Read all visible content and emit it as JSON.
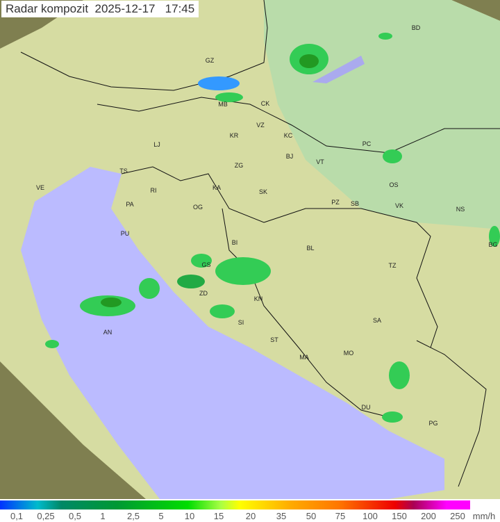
{
  "header": {
    "title": "Radar kompozit",
    "date": "2025-12-17",
    "time": "17:45"
  },
  "legend": {
    "unit": "mm/h",
    "ticks": [
      "0,1",
      "0,25",
      "0,5",
      "1",
      "2,5",
      "5",
      "10",
      "15",
      "20",
      "35",
      "50",
      "75",
      "100",
      "150",
      "200",
      "250"
    ]
  },
  "colors": {
    "sea": "#bbbbff",
    "land": "#d8e0a0",
    "outside": "#8a8a55",
    "rain_low": "#33cc55",
    "rain_mid": "#229922",
    "rain_light": "#3399ff"
  },
  "cities": [
    "GZ",
    "MB",
    "CK",
    "VZ",
    "KR",
    "KC",
    "LJ",
    "BJ",
    "VT",
    "ZG",
    "TS",
    "VE",
    "RI",
    "KA",
    "SK",
    "OS",
    "PA",
    "OG",
    "PZ",
    "SB",
    "VK",
    "NS",
    "PU",
    "BI",
    "BL",
    "BG",
    "GS",
    "TZ",
    "ZD",
    "KN",
    "SA",
    "SI",
    "AN",
    "ST",
    "MA",
    "MO",
    "DU",
    "PG",
    "BD",
    "PC"
  ]
}
